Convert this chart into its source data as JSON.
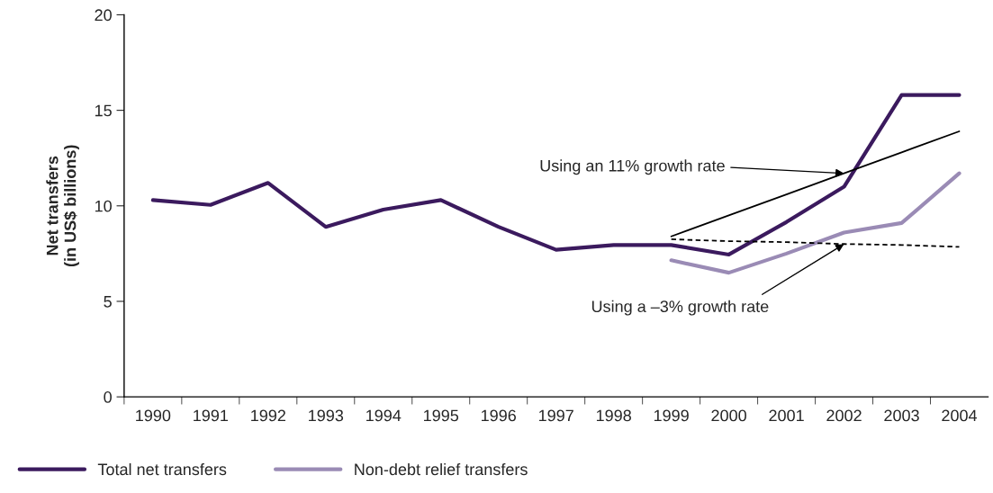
{
  "chart_data": {
    "type": "line",
    "ylabel": "Net transfers\n(in US$ billions)",
    "categories": [
      "1990",
      "1991",
      "1992",
      "1993",
      "1994",
      "1995",
      "1996",
      "1997",
      "1998",
      "1999",
      "2000",
      "2001",
      "2002",
      "2003",
      "2004"
    ],
    "series": [
      {
        "name": "Total net transfers",
        "color": "#3b1a5e",
        "line_style": "solid",
        "values": [
          10.3,
          10.05,
          11.2,
          8.9,
          9.8,
          10.3,
          8.9,
          7.7,
          7.95,
          7.95,
          7.45,
          9.15,
          11.0,
          15.8,
          15.8
        ]
      },
      {
        "name": "Non-debt relief transfers",
        "color": "#9a8bb5",
        "line_style": "solid",
        "values": [
          null,
          null,
          null,
          null,
          null,
          null,
          null,
          null,
          null,
          7.15,
          6.5,
          7.5,
          8.6,
          9.1,
          11.7
        ]
      },
      {
        "color": "#000000",
        "line_style": "solid",
        "values": [
          null,
          null,
          null,
          null,
          null,
          null,
          null,
          null,
          null,
          8.4,
          9.5,
          10.6,
          11.7,
          12.8,
          13.9
        ]
      },
      {
        "color": "#000000",
        "line_style": "dashed",
        "values": [
          null,
          null,
          null,
          null,
          null,
          null,
          null,
          null,
          null,
          8.25,
          8.15,
          8.1,
          8.0,
          7.95,
          7.85
        ]
      }
    ],
    "annotations": [
      {
        "text": "Using an 11% growth rate",
        "x": "2002",
        "y": 11.7
      },
      {
        "text": "Using a –3% growth rate",
        "x": "2002",
        "y": 8.0
      }
    ],
    "ylim": [
      0,
      20
    ],
    "yticks": [
      0,
      5,
      10,
      15,
      20
    ],
    "grid": false,
    "legend": "bottom left",
    "marker": "none"
  }
}
